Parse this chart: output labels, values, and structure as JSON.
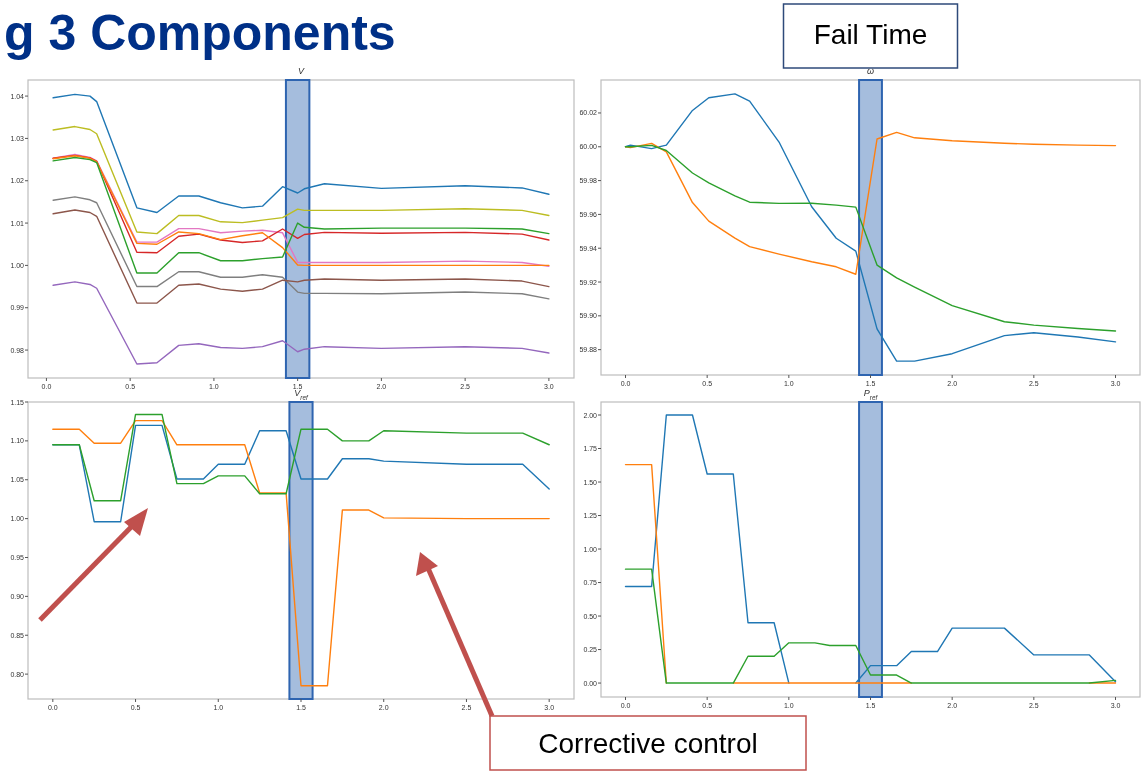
{
  "chart_data": [
    {
      "type": "other",
      "title": "g 3 Components"
    },
    {
      "type": "line",
      "title": "V",
      "x": [
        0.04,
        0.17,
        0.26,
        0.3,
        0.54,
        0.66,
        0.79,
        0.91,
        1.04,
        1.17,
        1.29,
        1.41,
        1.5,
        1.54,
        1.66,
        2.0,
        2.5,
        2.84,
        3.0
      ],
      "xlim": [
        -0.11,
        3.15
      ],
      "xticks": [
        {
          "value": 0,
          "label": "0.0"
        },
        0.5,
        {
          "value": 1,
          "label": "1.0"
        },
        1.5,
        {
          "value": 2,
          "label": "2.0"
        },
        2.5,
        {
          "value": 3,
          "label": "3.0"
        }
      ],
      "ylim": [
        0.9734,
        1.0438
      ],
      "yticks": [
        0.98,
        0.99,
        {
          "value": 1,
          "label": "1.00"
        },
        1.01,
        1.02,
        1.03,
        1.04
      ],
      "bands": [
        {
          "axis": "x",
          "from": 1.43,
          "to": 1.57,
          "color": "#a0b9db"
        }
      ],
      "series": [
        {
          "color": "#1f77b4",
          "values": [
            1.0396,
            1.0404,
            1.04,
            1.0387,
            1.0136,
            1.0125,
            1.0164,
            1.0164,
            1.0148,
            1.0136,
            1.014,
            1.0186,
            1.0171,
            1.0181,
            1.0193,
            1.0182,
            1.0188,
            1.0183,
            1.0168
          ]
        },
        {
          "color": "#bcbd22",
          "values": [
            1.032,
            1.0328,
            1.0321,
            1.0311,
            1.0079,
            1.0075,
            1.0118,
            1.0118,
            1.0103,
            1.0101,
            1.0107,
            1.0113,
            1.0133,
            1.013,
            1.013,
            1.013,
            1.0134,
            1.013,
            1.0118
          ]
        },
        {
          "color": "#e377c2",
          "values": [
            1.0253,
            1.0262,
            1.0255,
            1.0247,
            1.0055,
            1.0055,
            1.0087,
            1.0087,
            1.0077,
            1.0081,
            1.0083,
            1.0077,
            1.0007,
            1.0007,
            1.0007,
            1.0007,
            1.001,
            1.0007,
            0.9998
          ]
        },
        {
          "color": "#d62728",
          "values": [
            1.0253,
            1.026,
            1.0254,
            1.0246,
            1.0031,
            1.003,
            1.0069,
            1.0074,
            1.006,
            1.0054,
            1.0058,
            1.0086,
            1.0064,
            1.0073,
            1.0078,
            1.0076,
            1.0078,
            1.0074,
            1.006
          ]
        },
        {
          "color": "#ff7f0e",
          "values": [
            1.0252,
            1.0259,
            1.0253,
            1.0245,
            1.0052,
            1.005,
            1.0079,
            1.0075,
            1.0061,
            1.007,
            1.0077,
            1.0042,
            1.0001,
            1.0,
            1.0,
            1.0,
            1.0,
            1.0,
            1.0
          ]
        },
        {
          "color": "#2ca02c",
          "values": [
            1.0247,
            1.0255,
            1.025,
            1.0243,
            0.9982,
            0.9982,
            1.003,
            1.003,
            1.0011,
            1.0011,
            1.0016,
            1.002,
            1.01,
            1.009,
            1.0086,
            1.0088,
            1.0088,
            1.0086,
            1.0075
          ]
        },
        {
          "color": "#7f7f7f",
          "values": [
            1.0154,
            1.0162,
            1.0155,
            1.0148,
            0.995,
            0.995,
            0.9985,
            0.9985,
            0.9972,
            0.9972,
            0.9978,
            0.9972,
            0.9937,
            0.9934,
            0.9934,
            0.9933,
            0.9937,
            0.9933,
            0.9921
          ]
        },
        {
          "color": "#8c564b",
          "values": [
            1.0122,
            1.0131,
            1.0125,
            1.0116,
            0.9911,
            0.9911,
            0.9953,
            0.9956,
            0.9944,
            0.9939,
            0.9944,
            0.9965,
            0.9961,
            0.9965,
            0.9968,
            0.9965,
            0.9968,
            0.9963,
            0.995
          ]
        },
        {
          "color": "#9467bd",
          "values": [
            0.9953,
            0.9961,
            0.9955,
            0.9946,
            0.9767,
            0.977,
            0.9811,
            0.9815,
            0.9806,
            0.9804,
            0.9808,
            0.9822,
            0.9796,
            0.9802,
            0.9808,
            0.9804,
            0.9808,
            0.9804,
            0.9793
          ]
        }
      ]
    },
    {
      "type": "line",
      "title": "ω",
      "x": [
        0,
        0.03,
        0.16,
        0.25,
        0.41,
        0.51,
        0.67,
        0.76,
        0.94,
        1.14,
        1.29,
        1.41,
        1.54,
        1.66,
        1.77,
        2.0,
        2.32,
        2.5,
        2.77,
        3.0
      ],
      "xlim": [
        -0.15,
        3.15
      ],
      "xticks": [
        {
          "value": 0,
          "label": "0.0"
        },
        0.5,
        {
          "value": 1,
          "label": "1.0"
        },
        1.5,
        {
          "value": 2,
          "label": "2.0"
        },
        2.5,
        {
          "value": 3,
          "label": "3.0"
        }
      ],
      "ylim": [
        59.865,
        60.0395
      ],
      "yticks": [
        59.88,
        {
          "value": 59.9,
          "label": "59.90"
        },
        59.92,
        59.94,
        59.96,
        59.98,
        {
          "value": 60,
          "label": "60.00"
        },
        60.02
      ],
      "bands": [
        {
          "axis": "x",
          "from": 1.43,
          "to": 1.57,
          "color": "#a0b9db",
          "label": "Fail Time"
        }
      ],
      "series": [
        {
          "color": "#1f77b4",
          "values": [
            60.0,
            60.001,
            59.9989,
            60.001,
            60.0215,
            60.029,
            60.0313,
            60.027,
            60.0028,
            59.9645,
            59.9459,
            59.9383,
            59.8923,
            59.8732,
            59.8732,
            59.8776,
            59.8883,
            59.89,
            59.8875,
            59.8846
          ]
        },
        {
          "color": "#ff7f0e",
          "values": [
            60.0,
            59.9995,
            60.002,
            59.997,
            59.967,
            59.956,
            59.946,
            59.9409,
            59.9365,
            59.932,
            59.929,
            59.9246,
            60.0046,
            60.0085,
            60.0053,
            60.0036,
            60.0021,
            60.0015,
            60.001,
            60.0007
          ]
        },
        {
          "color": "#2ca02c",
          "values": [
            60.0,
            60.0,
            60.0008,
            59.9978,
            59.9845,
            59.9787,
            59.971,
            59.9672,
            59.9665,
            59.9666,
            59.9655,
            59.9643,
            59.93,
            59.9225,
            59.917,
            59.906,
            59.8965,
            59.8945,
            59.8925,
            59.891
          ]
        }
      ]
    },
    {
      "type": "line",
      "title": "V$_{ref}$",
      "x": [
        0,
        0.16,
        0.25,
        0.41,
        0.5,
        0.66,
        0.75,
        0.91,
        1.0,
        1.16,
        1.25,
        1.41,
        1.5,
        1.66,
        1.75,
        1.91,
        2.0,
        2.5,
        2.84,
        3.0
      ],
      "xlim": [
        -0.15,
        3.15
      ],
      "xticks": [
        {
          "value": 0,
          "label": "0.0"
        },
        0.5,
        {
          "value": 1,
          "label": "1.0"
        },
        1.5,
        {
          "value": 2,
          "label": "2.0"
        },
        2.5,
        {
          "value": 3,
          "label": "3.0"
        }
      ],
      "ylim": [
        0.768,
        1.15
      ],
      "yticks": [
        {
          "value": 0.8,
          "label": "0.80"
        },
        0.85,
        {
          "value": 0.9,
          "label": "0.90"
        },
        0.95,
        {
          "value": 1,
          "label": "1.00"
        },
        1.05,
        {
          "value": 1.1,
          "label": "1.10"
        },
        1.15
      ],
      "bands": [
        {
          "axis": "x",
          "from": 1.43,
          "to": 1.57,
          "color": "#a0b9db"
        }
      ],
      "annotations": [
        "Corrective control"
      ],
      "series": [
        {
          "color": "#1f77b4",
          "values": [
            1.095,
            1.095,
            0.996,
            0.996,
            1.12,
            1.12,
            1.051,
            1.051,
            1.07,
            1.07,
            1.113,
            1.113,
            1.051,
            1.051,
            1.077,
            1.077,
            1.074,
            1.07,
            1.07,
            1.038
          ]
        },
        {
          "color": "#ff7f0e",
          "values": [
            1.115,
            1.115,
            1.097,
            1.097,
            1.126,
            1.126,
            1.095,
            1.095,
            1.095,
            1.095,
            1.033,
            1.033,
            0.785,
            0.785,
            1.011,
            1.011,
            1.001,
            1.0,
            1.0,
            1.0
          ]
        },
        {
          "color": "#2ca02c",
          "values": [
            1.095,
            1.095,
            1.023,
            1.023,
            1.134,
            1.134,
            1.045,
            1.045,
            1.055,
            1.055,
            1.032,
            1.032,
            1.115,
            1.115,
            1.1,
            1.1,
            1.113,
            1.11,
            1.11,
            1.095
          ]
        }
      ]
    },
    {
      "type": "line",
      "title": "P$_{ref}$",
      "x": [
        0,
        0.16,
        0.25,
        0.41,
        0.5,
        0.66,
        0.75,
        0.91,
        1.0,
        1.16,
        1.25,
        1.41,
        1.5,
        1.66,
        1.75,
        1.91,
        2.0,
        2.32,
        2.5,
        2.84,
        3.0
      ],
      "xlim": [
        -0.15,
        3.15
      ],
      "xticks": [
        {
          "value": 0,
          "label": "0.0"
        },
        0.5,
        {
          "value": 1,
          "label": "1.0"
        },
        1.5,
        {
          "value": 2,
          "label": "2.0"
        },
        2.5,
        {
          "value": 3,
          "label": "3.0"
        }
      ],
      "ylim": [
        -0.104,
        2.097
      ],
      "yticks": [
        {
          "value": 0,
          "label": "0.00"
        },
        0.25,
        {
          "value": 0.5,
          "label": "0.50"
        },
        0.75,
        {
          "value": 1,
          "label": "1.00"
        },
        1.25,
        {
          "value": 1.5,
          "label": "1.50"
        },
        1.75,
        {
          "value": 2,
          "label": "2.00"
        }
      ],
      "bands": [
        {
          "axis": "x",
          "from": 1.43,
          "to": 1.57,
          "color": "#a0b9db"
        }
      ],
      "series": [
        {
          "color": "#1f77b4",
          "values": [
            0.72,
            0.72,
            2.0,
            2.0,
            1.56,
            1.56,
            0.45,
            0.45,
            0,
            null,
            null,
            0,
            0.13,
            0.13,
            0.235,
            0.235,
            0.41,
            0.41,
            0.21,
            0.21,
            0.01
          ]
        },
        {
          "color": "#ff7f0e",
          "values": [
            1.63,
            1.63,
            0,
            null,
            null,
            0,
            0,
            0,
            0,
            0,
            0,
            0,
            0,
            0,
            0,
            null,
            null,
            null,
            null,
            0,
            0
          ]
        },
        {
          "color": "#2ca02c",
          "values": [
            0.85,
            0.85,
            0,
            0,
            0,
            0,
            0.2,
            0.2,
            0.3,
            0.3,
            0.28,
            0.28,
            0.06,
            0.06,
            0,
            0,
            0,
            0,
            0,
            0,
            0.02
          ]
        }
      ]
    }
  ]
}
